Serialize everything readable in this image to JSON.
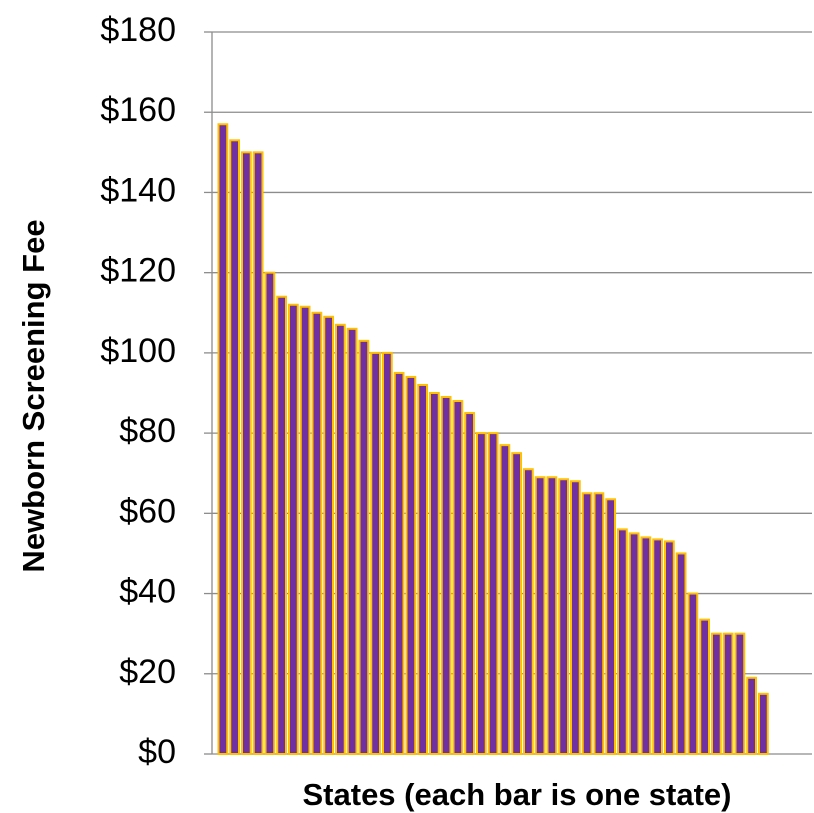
{
  "chart_data": {
    "type": "bar",
    "ylabel": "Newborn Screening Fee",
    "xlabel": "States (each bar is one state)",
    "categories": [
      null,
      null,
      null,
      null,
      null,
      null,
      null,
      null,
      null,
      null,
      null,
      null,
      null,
      null,
      null,
      null,
      null,
      null,
      null,
      null,
      null,
      null,
      null,
      null,
      null,
      null,
      null,
      null,
      null,
      null,
      null,
      null,
      null,
      null,
      null,
      null,
      null,
      null,
      null,
      null,
      null,
      null,
      null,
      null,
      null,
      null,
      null
    ],
    "values": [
      157,
      153,
      150,
      150,
      120,
      114,
      112,
      111.5,
      110,
      109,
      107,
      106,
      103,
      100,
      100,
      95,
      94,
      92,
      90,
      89,
      88,
      85,
      80,
      80,
      77,
      75,
      71,
      69,
      69,
      68.5,
      68,
      65,
      65,
      63.5,
      56,
      55,
      54,
      53.5,
      53,
      50,
      40,
      33.5,
      30,
      30,
      30,
      19,
      15
    ],
    "color": "#7030a0",
    "edge_color": "#ffc000",
    "ylim": [
      0,
      180
    ],
    "yticks": [
      {
        "value": 0,
        "label": "$0"
      },
      {
        "value": 20,
        "label": "$20"
      },
      {
        "value": 40,
        "label": "$40"
      },
      {
        "value": 60,
        "label": "$60"
      },
      {
        "value": 80,
        "label": "$80"
      },
      {
        "value": 100,
        "label": "$100"
      },
      {
        "value": 120,
        "label": "$120"
      },
      {
        "value": 140,
        "label": "$140"
      },
      {
        "value": 160,
        "label": "$160"
      },
      {
        "value": 180,
        "label": "$180"
      }
    ],
    "grid": true
  }
}
